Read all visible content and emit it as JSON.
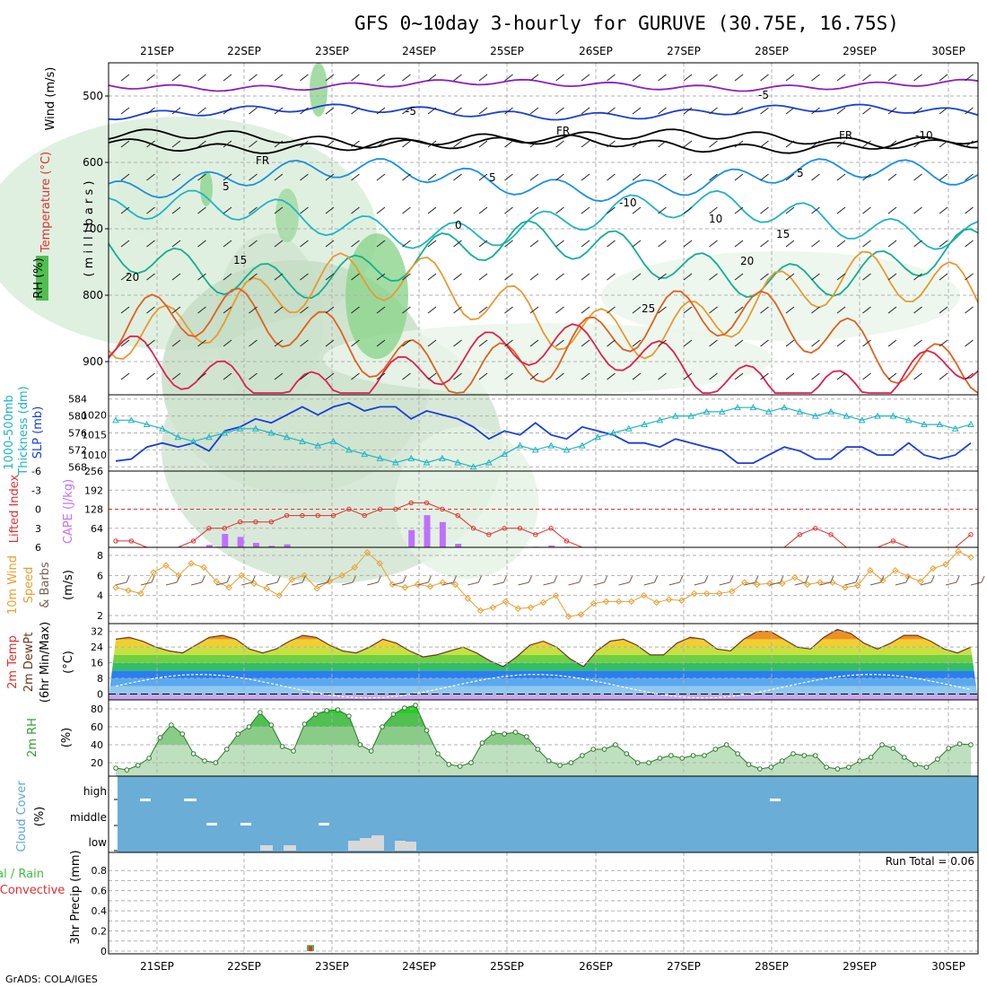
{
  "title": "GFS 0~10day 3-hourly for GURUVE (30.75E, 16.75S)",
  "credit": "GrADS: COLA/IGES",
  "run_total": "Run Total = 0.06",
  "dates": [
    "21SEP",
    "22SEP",
    "23SEP",
    "24SEP",
    "25SEP",
    "26SEP",
    "27SEP",
    "28SEP",
    "29SEP",
    "30SEP"
  ],
  "colors": {
    "slp": "#1a3fd6",
    "thickness": "#20b4c4",
    "cape": "#c070ff",
    "lifted": "#e03030",
    "wind_speed": "#e8a030",
    "barb": "#7a6050",
    "rh": "#50b050",
    "cloud_bg": "#6aadd6",
    "precip_total": "#40c040",
    "precip_conv": "#e03030",
    "grid": "#b0b0b0"
  },
  "panels": {
    "upper": {
      "labels": {
        "wind": "Wind (m/s)",
        "temp": "Temperature (°C)",
        "rh": "RH (%)",
        "mb": "( m i l l i b a r s )"
      },
      "contour_labels": [
        "-5",
        "-5",
        "FR",
        "FR",
        "FR",
        "5",
        "5",
        "5",
        "0",
        "15",
        "10",
        "15",
        "20",
        "20",
        "25",
        "-10",
        "-10"
      ]
    },
    "slp": {
      "label_left": "1000-500mb",
      "label_thick": "Thickness (dm)",
      "label_slp": "SLP (mb)"
    },
    "cape": {
      "label_li": "Lifted Index",
      "label_cape": "CAPE (J/kg)"
    },
    "wind10": {
      "label1": "10m Wind",
      "label2": "Speed",
      "label3": "& Barbs",
      "unit": "(m/s)"
    },
    "temp2m": {
      "label1": "2m Temp",
      "label2": "2m DewPt",
      "label3": "(6hr Min/Max)",
      "unit": "(°C)"
    },
    "rh2m": {
      "label": "2m RH",
      "unit": "(%)"
    },
    "cloud": {
      "label": "Cloud Cover",
      "unit": "(%)",
      "levels": [
        "high",
        "middle",
        "low"
      ]
    },
    "precip": {
      "label1": "tal / Rain",
      "label2": "Convective",
      "label3": "3hr Precip (mm)"
    }
  },
  "chart_data": [
    {
      "type": "heatmap",
      "name": "upper_air",
      "ylabel": "millibars",
      "yticks": [
        500,
        600,
        700,
        800,
        900
      ],
      "ylim": [
        450,
        950
      ]
    },
    {
      "type": "line",
      "name": "slp_thickness",
      "yticks_left": [
        568,
        572,
        576,
        580,
        584
      ],
      "yticks_right": [
        1010,
        1015,
        1020
      ],
      "series": [
        {
          "name": "SLP (mb)",
          "values": [
            1008.5,
            1009,
            1012,
            1013,
            1012,
            1013,
            1011,
            1016,
            1017,
            1019,
            1018,
            1020,
            1022,
            1020,
            1022,
            1023,
            1021,
            1022,
            1022,
            1019,
            1021,
            1020,
            1019,
            1017,
            1014,
            1016,
            1015,
            1018,
            1015,
            1014,
            1017,
            1016,
            1015,
            1013,
            1013,
            1012,
            1014,
            1013,
            1012,
            1011,
            1008,
            1008,
            1010,
            1012,
            1011,
            1009,
            1009,
            1012,
            1012,
            1010,
            1010,
            1013,
            1010,
            1009,
            1010,
            1013
          ]
        },
        {
          "name": "Thickness (dm)",
          "values": [
            579,
            579,
            578,
            577,
            575,
            574,
            575,
            576,
            577,
            577,
            576,
            575,
            574,
            573,
            574,
            572,
            571,
            570,
            569,
            570,
            569,
            570,
            569,
            568,
            569,
            571,
            573,
            572,
            573,
            572,
            573,
            575,
            576,
            577,
            578,
            579,
            580,
            580,
            581,
            581,
            582,
            582,
            581,
            582,
            581,
            580,
            581,
            580,
            579,
            580,
            580,
            579,
            578,
            578,
            577,
            578
          ]
        }
      ]
    },
    {
      "type": "bar",
      "name": "cape_lifted",
      "yticks_cape": [
        64,
        128,
        192,
        256
      ],
      "yticks_li": [
        -6,
        -3,
        0,
        3,
        6
      ],
      "cape": [
        0,
        0,
        0,
        0,
        0,
        0,
        8,
        45,
        35,
        15,
        5,
        10,
        0,
        0,
        0,
        0,
        0,
        0,
        0,
        58,
        108,
        85,
        12,
        0,
        0,
        0,
        0,
        2,
        6,
        2,
        0,
        0,
        0,
        0,
        0,
        0,
        0,
        0,
        0,
        0,
        0,
        0,
        0,
        0,
        0,
        0,
        0,
        0,
        0,
        0,
        0,
        0,
        0,
        0,
        0,
        0
      ],
      "lifted_index": [
        5,
        5,
        7,
        7,
        7,
        5,
        3,
        3,
        2,
        2,
        2,
        1,
        1,
        1,
        1,
        0,
        1,
        0,
        0,
        -1,
        -1,
        0,
        1,
        3,
        4,
        3,
        3,
        4,
        3,
        5,
        7,
        7,
        7,
        7,
        7,
        7,
        7,
        7,
        7,
        7,
        7,
        7,
        7,
        7,
        4,
        3,
        4,
        7,
        7,
        7,
        5,
        7,
        7,
        6,
        6,
        4
      ]
    },
    {
      "type": "line",
      "name": "wind10m",
      "yticks": [
        2,
        4,
        6,
        8
      ],
      "values": [
        4.8,
        4.5,
        4.2,
        6.3,
        7,
        6,
        7.2,
        6.8,
        5.4,
        4.8,
        6,
        5.2,
        4.7,
        4,
        5.6,
        6,
        4.7,
        5.4,
        6,
        6.8,
        8.3,
        7.2,
        5.1,
        4.8,
        5.1,
        4.9,
        5.3,
        5.1,
        3.7,
        2.5,
        2.8,
        3.4,
        2.7,
        2.8,
        3.3,
        4,
        1.9,
        2.1,
        3.2,
        3.4,
        3.4,
        3.4,
        4,
        3.3,
        3.6,
        3.5,
        4.2,
        4.2,
        4.2,
        4.4,
        5.3,
        5.1,
        5.2,
        5.2,
        5.8,
        5.1,
        5.3,
        5.3,
        4.8,
        5,
        6.5,
        5.5,
        6.5,
        5.9,
        5.4,
        6.7,
        7.1,
        8.4,
        7.8
      ]
    },
    {
      "type": "area",
      "name": "temp2m",
      "yticks": [
        0,
        8,
        16,
        24,
        32
      ],
      "values": [
        28,
        29,
        27,
        24,
        22,
        21,
        25,
        29,
        30,
        28,
        23,
        21,
        23,
        27,
        30,
        29,
        25,
        22,
        21,
        24,
        28,
        26,
        22,
        19,
        20,
        22,
        24,
        21,
        17,
        14,
        19,
        25,
        27,
        24,
        18,
        14,
        22,
        27,
        28,
        25,
        20,
        20,
        26,
        29,
        28,
        23,
        22,
        28,
        32,
        32,
        28,
        24,
        23,
        29,
        33,
        31,
        26,
        23,
        26,
        30,
        30,
        27,
        23,
        21,
        24
      ]
    },
    {
      "type": "area",
      "name": "rh2m",
      "yticks": [
        20,
        40,
        60,
        80
      ],
      "values": [
        14,
        12,
        17,
        25,
        48,
        62,
        52,
        30,
        22,
        20,
        35,
        52,
        60,
        76,
        62,
        38,
        33,
        63,
        74,
        78,
        79,
        72,
        40,
        33,
        60,
        74,
        81,
        84,
        56,
        30,
        18,
        16,
        20,
        42,
        53,
        52,
        54,
        49,
        35,
        22,
        17,
        20,
        28,
        35,
        35,
        40,
        30,
        20,
        20,
        25,
        28,
        25,
        28,
        28,
        35,
        40,
        30,
        18,
        13,
        15,
        22,
        30,
        28,
        28,
        15,
        13,
        15,
        22,
        26,
        40,
        36,
        26,
        18,
        15,
        24,
        36,
        41,
        40
      ]
    },
    {
      "type": "bar",
      "name": "precip_3hr",
      "yticks": [
        0,
        0.2,
        0.4,
        0.6,
        0.8
      ],
      "total": 0.06
    }
  ]
}
